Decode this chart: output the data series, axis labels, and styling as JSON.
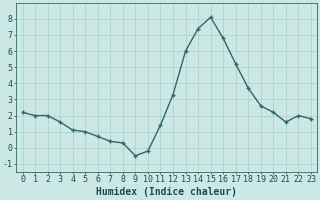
{
  "x": [
    0,
    1,
    2,
    3,
    4,
    5,
    6,
    7,
    8,
    9,
    10,
    11,
    12,
    13,
    14,
    15,
    16,
    17,
    18,
    19,
    20,
    21,
    22,
    23
  ],
  "y": [
    2.2,
    2.0,
    2.0,
    1.6,
    1.1,
    1.0,
    0.7,
    0.4,
    0.3,
    -0.5,
    -0.2,
    1.4,
    3.3,
    6.0,
    7.4,
    8.1,
    6.8,
    5.2,
    3.7,
    2.6,
    2.2,
    1.6,
    2.0,
    1.8
  ],
  "line_color": "#2d6b5e",
  "marker": "+",
  "marker_size": 3.5,
  "marker_linewidth": 1.0,
  "line_width": 1.0,
  "bg_color": "#cce8e4",
  "grid_color": "#aacfca",
  "xlabel": "Humidex (Indice chaleur)",
  "xlabel_fontsize": 7,
  "xlabel_fontweight": "bold",
  "xlabel_color": "#1a4f47",
  "ylim": [
    -1.5,
    9.0
  ],
  "xlim": [
    -0.5,
    23.5
  ],
  "tick_color": "#1a4f47",
  "tick_fontsize": 6,
  "spine_color": "#2d6b5e",
  "ytick_vals": [
    -1,
    0,
    1,
    2,
    3,
    4,
    5,
    6,
    7,
    8
  ]
}
